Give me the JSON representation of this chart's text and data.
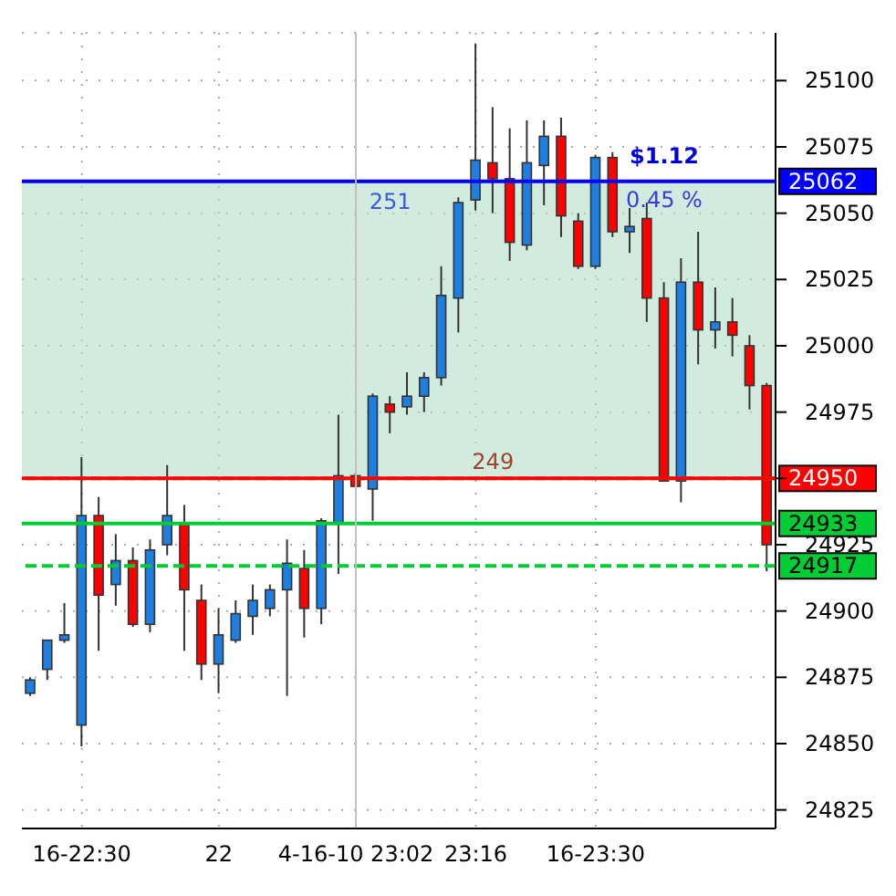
{
  "chart_data": {
    "type": "candlestick",
    "categories": [
      null,
      null,
      null,
      "16-22:30",
      null,
      null,
      null,
      null,
      null,
      null,
      null,
      "22",
      null,
      null,
      null,
      null,
      null,
      null,
      null,
      "4-16-10 23:02",
      null,
      null,
      null,
      null,
      null,
      null,
      "23:16",
      null,
      null,
      null,
      null,
      null,
      null,
      "16-23:30",
      null,
      null,
      null,
      null,
      null,
      null,
      null,
      null,
      null,
      null
    ],
    "ohlc": [
      [
        24869,
        24875,
        24868,
        24874
      ],
      [
        24878,
        24889,
        24874,
        24889
      ],
      [
        24889,
        24903,
        24888,
        24891
      ],
      [
        24857,
        24958,
        24849,
        24936
      ],
      [
        24936,
        24943,
        24885,
        24906
      ],
      [
        24910,
        24929,
        24902,
        24919
      ],
      [
        24919,
        24924,
        24894,
        24895
      ],
      [
        24895,
        24927,
        24892,
        24923
      ],
      [
        24925,
        24955,
        24921,
        24936
      ],
      [
        24933,
        24940,
        24885,
        24908
      ],
      [
        24904,
        24910,
        24874,
        24880
      ],
      [
        24880,
        24901,
        24869,
        24891
      ],
      [
        24889,
        24904,
        24888,
        24899
      ],
      [
        24898,
        24910,
        24891,
        24904
      ],
      [
        24901,
        24910,
        24898,
        24908
      ],
      [
        24908,
        24927,
        24868,
        24918
      ],
      [
        24916,
        24923,
        24890,
        24901
      ],
      [
        24901,
        24935,
        24895,
        24934
      ],
      [
        24933,
        24974,
        24914,
        24951
      ],
      [
        24951,
        24952,
        24947,
        24947
      ],
      [
        24946,
        24982,
        24934,
        24981
      ],
      [
        24978,
        24981,
        24967,
        24975
      ],
      [
        24977,
        24990,
        24974,
        24981
      ],
      [
        24981,
        24990,
        24975,
        24988
      ],
      [
        24988,
        25030,
        24985,
        25019
      ],
      [
        25018,
        25056,
        25005,
        25054
      ],
      [
        25055,
        25114,
        25051,
        25070
      ],
      [
        25069,
        25090,
        25050,
        25063
      ],
      [
        25063,
        25082,
        25032,
        25039
      ],
      [
        25038,
        25085,
        25036,
        25069
      ],
      [
        25068,
        25085,
        25053,
        25079
      ],
      [
        25079,
        25086,
        25041,
        25049
      ],
      [
        25047,
        25050,
        25029,
        25030
      ],
      [
        25030,
        25072,
        25029,
        25071
      ],
      [
        25071,
        25073,
        25041,
        25043
      ],
      [
        25043,
        25052,
        25035,
        25045
      ],
      [
        25048,
        25054,
        25009,
        25018
      ],
      [
        25018,
        25024,
        24949,
        24949
      ],
      [
        24949,
        25033,
        24941,
        25024
      ],
      [
        25024,
        25043,
        24993,
        25006
      ],
      [
        25006,
        25022,
        24999,
        25009
      ],
      [
        25009,
        25018,
        24996,
        25004
      ],
      [
        25000,
        25004,
        24976,
        24985
      ],
      [
        24985,
        24986,
        24915,
        24925
      ]
    ],
    "colors": [
      "#1e7fe0",
      "#1e7fe0",
      "#1e7fe0",
      "#1e7fe0",
      "#ff0000",
      "#1e7fe0",
      "#ff0000",
      "#1e7fe0",
      "#1e7fe0",
      "#ff0000",
      "#ff0000",
      "#1e7fe0",
      "#1e7fe0",
      "#1e7fe0",
      "#1e7fe0",
      "#1e7fe0",
      "#ff0000",
      "#1e7fe0",
      "#1e7fe0",
      "#ff0000",
      "#1e7fe0",
      "#ff0000",
      "#1e7fe0",
      "#1e7fe0",
      "#1e7fe0",
      "#1e7fe0",
      "#1e7fe0",
      "#ff0000",
      "#ff0000",
      "#1e7fe0",
      "#1e7fe0",
      "#ff0000",
      "#ff0000",
      "#1e7fe0",
      "#ff0000",
      "#1e7fe0",
      "#ff0000",
      "#ff0000",
      "#1e7fe0",
      "#ff0000",
      "#1e7fe0",
      "#ff0000",
      "#ff0000",
      "#ff0000"
    ],
    "ylim": [
      24818,
      25118
    ],
    "yticks": [
      24825,
      24850,
      24875,
      24900,
      24925,
      {
        "value": 24950,
        "label": null
      },
      24975,
      25000,
      25025,
      25050,
      25075,
      25100
    ],
    "grid": true,
    "bands": [
      {
        "axis": "y",
        "from": 24950,
        "to": 25062,
        "color": "#b2e0c8"
      }
    ],
    "ref_lines": [
      {
        "axis": "y",
        "value": 25062,
        "label": "25062",
        "color": "#0000ff"
      },
      {
        "axis": "y",
        "value": 24950,
        "color": "#00cc33",
        "line_style": "dashed"
      },
      {
        "axis": "y",
        "value": 24950,
        "label": "24950",
        "color": "#ff0000"
      },
      {
        "axis": "y",
        "value": 24933,
        "label": "24933",
        "color": "#00cc33"
      },
      {
        "axis": "y",
        "value": 24917,
        "label": "24917",
        "color": "#00cc33",
        "line_style": "dashed"
      },
      {
        "axis": "x",
        "value": "4-16-10 23:02",
        "color": "#c0c0c0"
      }
    ],
    "annotations": [
      {
        "text": "$1.12",
        "y": 25062
      },
      {
        "text": "0.45 %",
        "y": 25062
      },
      {
        "text": "251",
        "y": 25062
      },
      {
        "text": "249",
        "y": 24950
      }
    ]
  }
}
